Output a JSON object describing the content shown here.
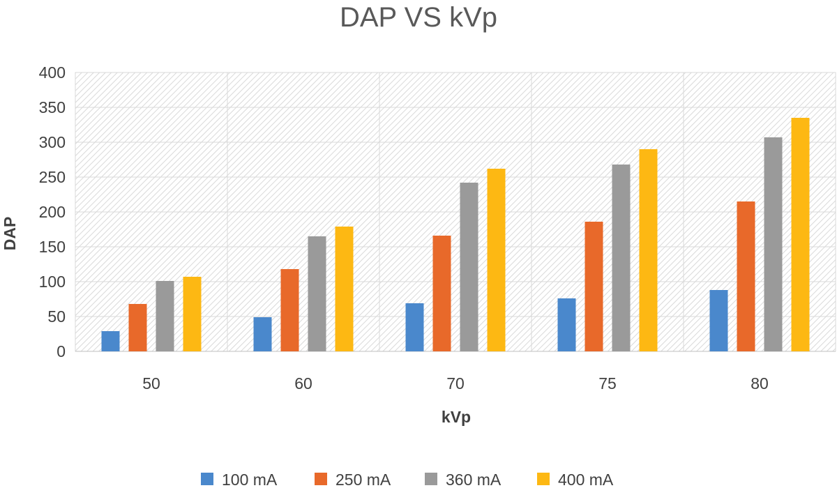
{
  "chart_data": {
    "type": "bar",
    "title": "DAP VS kVp",
    "xlabel": "kVp",
    "ylabel": "DAP",
    "categories": [
      "50",
      "60",
      "70",
      "75",
      "80"
    ],
    "series": [
      {
        "name": "100 mA",
        "color": "#4A88CC",
        "values": [
          29,
          49,
          69,
          76,
          88
        ]
      },
      {
        "name": "250 mA",
        "color": "#E8692A",
        "values": [
          68,
          118,
          166,
          186,
          215
        ]
      },
      {
        "name": "360 mA",
        "color": "#9A9A9A",
        "values": [
          101,
          165,
          242,
          268,
          307
        ]
      },
      {
        "name": "400 mA",
        "color": "#FDB813",
        "values": [
          107,
          179,
          262,
          290,
          335
        ]
      }
    ],
    "ylim": [
      0,
      400
    ],
    "yticks": [
      "0",
      "50",
      "100",
      "150",
      "200",
      "250",
      "300",
      "350",
      "400"
    ],
    "grid": true,
    "legend": "bottom"
  }
}
